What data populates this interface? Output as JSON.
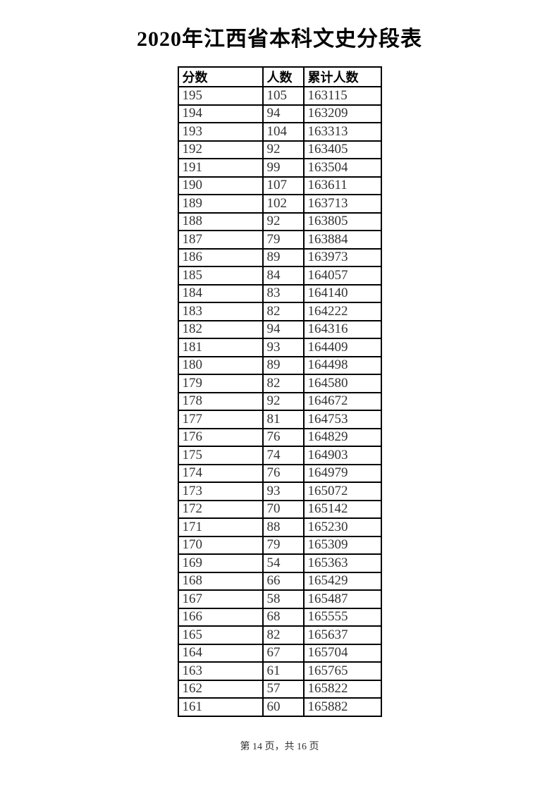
{
  "page": {
    "title": "2020年江西省本科文史分段表",
    "footer": "第 14 页，共 16 页"
  },
  "table": {
    "columns": [
      "分数",
      "人数",
      "累计人数"
    ],
    "rows": [
      [
        "195",
        "105",
        "163115"
      ],
      [
        "194",
        "94",
        "163209"
      ],
      [
        "193",
        "104",
        "163313"
      ],
      [
        "192",
        "92",
        "163405"
      ],
      [
        "191",
        "99",
        "163504"
      ],
      [
        "190",
        "107",
        "163611"
      ],
      [
        "189",
        "102",
        "163713"
      ],
      [
        "188",
        "92",
        "163805"
      ],
      [
        "187",
        "79",
        "163884"
      ],
      [
        "186",
        "89",
        "163973"
      ],
      [
        "185",
        "84",
        "164057"
      ],
      [
        "184",
        "83",
        "164140"
      ],
      [
        "183",
        "82",
        "164222"
      ],
      [
        "182",
        "94",
        "164316"
      ],
      [
        "181",
        "93",
        "164409"
      ],
      [
        "180",
        "89",
        "164498"
      ],
      [
        "179",
        "82",
        "164580"
      ],
      [
        "178",
        "92",
        "164672"
      ],
      [
        "177",
        "81",
        "164753"
      ],
      [
        "176",
        "76",
        "164829"
      ],
      [
        "175",
        "74",
        "164903"
      ],
      [
        "174",
        "76",
        "164979"
      ],
      [
        "173",
        "93",
        "165072"
      ],
      [
        "172",
        "70",
        "165142"
      ],
      [
        "171",
        "88",
        "165230"
      ],
      [
        "170",
        "79",
        "165309"
      ],
      [
        "169",
        "54",
        "165363"
      ],
      [
        "168",
        "66",
        "165429"
      ],
      [
        "167",
        "58",
        "165487"
      ],
      [
        "166",
        "68",
        "165555"
      ],
      [
        "165",
        "82",
        "165637"
      ],
      [
        "164",
        "67",
        "165704"
      ],
      [
        "163",
        "61",
        "165765"
      ],
      [
        "162",
        "57",
        "165822"
      ],
      [
        "161",
        "60",
        "165882"
      ]
    ]
  },
  "colors": {
    "page_background": "#ffffff",
    "border": "#000000",
    "title_text": "#000000",
    "body_text": "#333333"
  }
}
